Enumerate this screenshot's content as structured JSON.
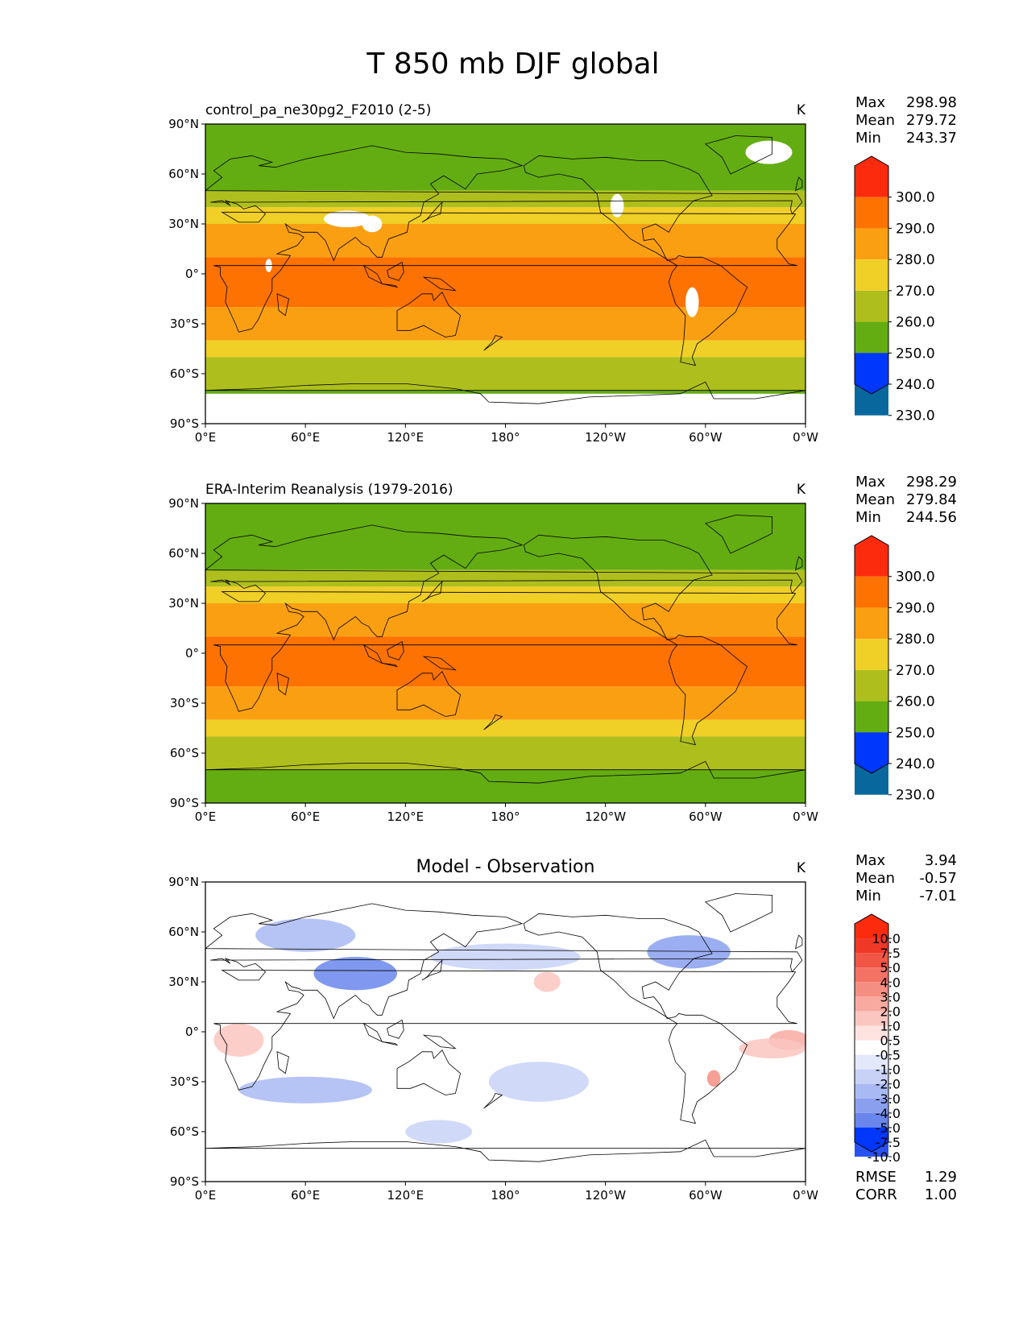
{
  "figure_title": "T 850 mb DJF global",
  "colors": {
    "ocean_warm_290": "#fd7200",
    "band_280": "#fb9f12",
    "band_270": "#f0cf27",
    "band_260": "#aebf1d",
    "band_250": "#63ad12",
    "band_240": "#3b8d47",
    "band_230": "#08689d",
    "below_230": "#0037fd",
    "above_300": "#fd2b0e",
    "diff_positive": "#f26e64",
    "diff_negative": "#5a78e8"
  },
  "tick_labels": {
    "lat": [
      "90°N",
      "60°N",
      "30°N",
      "0°",
      "30°S",
      "60°S",
      "90°S"
    ],
    "lon": [
      "0°E",
      "60°E",
      "120°E",
      "180°",
      "120°W",
      "60°W",
      "0°W"
    ]
  },
  "stat_labels": {
    "max": "Max",
    "mean": "Mean",
    "min": "Min",
    "rmse": "RMSE",
    "corr": "CORR"
  },
  "chart_data": [
    {
      "type": "heatmap",
      "title": "control_pa_ne30pg2_F2010 (2-5)",
      "units": "K",
      "stats": {
        "max": "298.98",
        "mean": "279.72",
        "min": "243.37"
      },
      "colorbar": {
        "levels": [
          "230.0",
          "240.0",
          "250.0",
          "260.0",
          "270.0",
          "280.0",
          "290.0",
          "300.0"
        ],
        "colors": [
          "#0037fd",
          "#08689d",
          "#3b8d47",
          "#63ad12",
          "#aebf1d",
          "#f0cf27",
          "#fb9f12",
          "#fd7200",
          "#fd2b0e"
        ]
      },
      "xlim": [
        0,
        360
      ],
      "ylim": [
        -90,
        90
      ],
      "zonal_bands": [
        {
          "lat": [
            75,
            90
          ],
          "value": 250
        },
        {
          "lat": [
            50,
            75
          ],
          "value": 255
        },
        {
          "lat": [
            40,
            50
          ],
          "value": 265
        },
        {
          "lat": [
            30,
            40
          ],
          "value": 275
        },
        {
          "lat": [
            10,
            30
          ],
          "value": 283
        },
        {
          "lat": [
            -20,
            10
          ],
          "value": 291
        },
        {
          "lat": [
            -40,
            -20
          ],
          "value": 284
        },
        {
          "lat": [
            -50,
            -40
          ],
          "value": 275
        },
        {
          "lat": [
            -70,
            -50
          ],
          "value": 265
        },
        {
          "lat": [
            -90,
            -70
          ],
          "value": 258
        }
      ],
      "missing_regions": [
        "Greenland",
        "Tibetan Plateau",
        "Rocky Mountains",
        "Andes",
        "Antarctica",
        "East Africa highlands"
      ]
    },
    {
      "type": "heatmap",
      "title": "ERA-Interim Reanalysis (1979-2016)",
      "units": "K",
      "stats": {
        "max": "298.29",
        "mean": "279.84",
        "min": "244.56"
      },
      "colorbar": {
        "levels": [
          "230.0",
          "240.0",
          "250.0",
          "260.0",
          "270.0",
          "280.0",
          "290.0",
          "300.0"
        ],
        "colors": [
          "#0037fd",
          "#08689d",
          "#3b8d47",
          "#63ad12",
          "#aebf1d",
          "#f0cf27",
          "#fb9f12",
          "#fd7200",
          "#fd2b0e"
        ]
      },
      "xlim": [
        0,
        360
      ],
      "ylim": [
        -90,
        90
      ],
      "zonal_bands": [
        {
          "lat": [
            75,
            90
          ],
          "value": 250
        },
        {
          "lat": [
            50,
            75
          ],
          "value": 255
        },
        {
          "lat": [
            40,
            50
          ],
          "value": 265
        },
        {
          "lat": [
            30,
            40
          ],
          "value": 275
        },
        {
          "lat": [
            10,
            30
          ],
          "value": 283
        },
        {
          "lat": [
            -20,
            10
          ],
          "value": 291
        },
        {
          "lat": [
            -40,
            -20
          ],
          "value": 284
        },
        {
          "lat": [
            -50,
            -40
          ],
          "value": 275
        },
        {
          "lat": [
            -70,
            -50
          ],
          "value": 265
        },
        {
          "lat": [
            -90,
            -70
          ],
          "value": 255
        }
      ]
    },
    {
      "type": "heatmap",
      "title": "Model - Observation",
      "units": "K",
      "stats": {
        "max": "3.94",
        "mean": "-0.57",
        "min": "-7.01",
        "rmse": "1.29",
        "corr": "1.00"
      },
      "colorbar": {
        "levels": [
          "-10.0",
          "-7.5",
          "-5.0",
          "-4.0",
          "-3.0",
          "-2.0",
          "-1.0",
          "-0.5",
          "0.5",
          "1.0",
          "2.0",
          "3.0",
          "4.0",
          "5.0",
          "7.5",
          "10.0"
        ],
        "colors": [
          "#0037fd",
          "#2852f0",
          "#4a6ce8",
          "#6a86ec",
          "#8aa0ef",
          "#a9b9f3",
          "#c8d2f7",
          "#e3e8fb",
          "#ffffff",
          "#fde2df",
          "#fbc6c0",
          "#f8aaa1",
          "#f58e82",
          "#f37264",
          "#f15545",
          "#f03826",
          "#fd2b0e"
        ]
      },
      "xlim": [
        0,
        360
      ],
      "ylim": [
        -90,
        90
      ]
    }
  ]
}
